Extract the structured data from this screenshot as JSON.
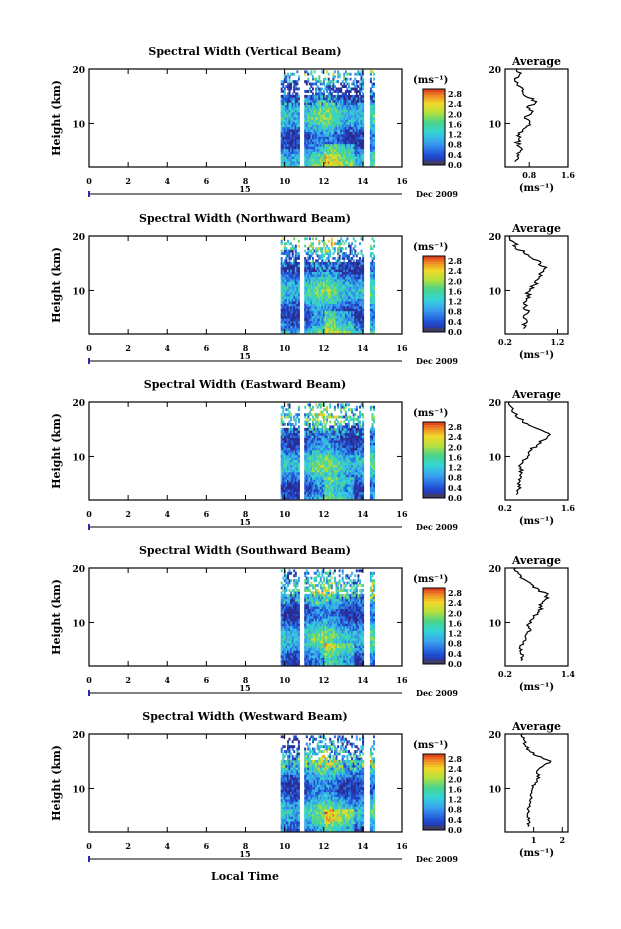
{
  "figure": {
    "date_label": "Dec 2009",
    "day_label": "15",
    "xlabel": "Local Time",
    "colorbar_unit": "(ms⁻¹)",
    "avg_unit": "(ms⁻¹)",
    "avg_title": "Average"
  },
  "chart_data": [
    {
      "type": "heatmap",
      "title": "Spectral Width (Vertical Beam)",
      "ylabel": "Height (km)",
      "xlim": [
        0,
        16
      ],
      "ylim": [
        2,
        20
      ],
      "xticks": [
        "0",
        "2",
        "4",
        "6",
        "8",
        "10",
        "12",
        "14",
        "16"
      ],
      "yticks": [
        "10",
        "20"
      ],
      "data_x_range": [
        9.8,
        14.6
      ],
      "data_gaps": [
        [
          10.7,
          11.0
        ],
        [
          14.0,
          14.3
        ]
      ],
      "colorbar": {
        "ticks": [
          "2.8",
          "2.4",
          "2.0",
          "1.6",
          "1.2",
          "0.8",
          "0.4",
          "0.0"
        ],
        "range": [
          0.0,
          3.0
        ]
      },
      "average_profile": {
        "xlim": [
          0.3,
          1.6
        ],
        "xticks": [
          "0.8",
          "1.6"
        ],
        "points": [
          [
            0.5,
            3
          ],
          [
            0.55,
            4
          ],
          [
            0.62,
            5
          ],
          [
            0.55,
            6
          ],
          [
            0.58,
            7
          ],
          [
            0.6,
            8
          ],
          [
            0.68,
            9
          ],
          [
            0.8,
            10
          ],
          [
            0.7,
            11
          ],
          [
            0.85,
            12
          ],
          [
            0.75,
            13
          ],
          [
            0.95,
            14
          ],
          [
            0.72,
            15
          ],
          [
            0.65,
            16
          ],
          [
            0.55,
            17
          ],
          [
            0.5,
            18
          ],
          [
            0.6,
            19
          ],
          [
            0.55,
            20
          ]
        ]
      }
    },
    {
      "type": "heatmap",
      "title": "Spectral Width (Northward Beam)",
      "ylabel": "Height (km)",
      "xlim": [
        0,
        16
      ],
      "ylim": [
        2,
        20
      ],
      "xticks": [
        "0",
        "2",
        "4",
        "6",
        "8",
        "10",
        "12",
        "14",
        "16"
      ],
      "yticks": [
        "10",
        "20"
      ],
      "data_x_range": [
        9.8,
        14.6
      ],
      "data_gaps": [
        [
          10.7,
          11.0
        ],
        [
          14.0,
          14.3
        ]
      ],
      "colorbar": {
        "ticks": [
          "2.8",
          "2.4",
          "2.0",
          "1.6",
          "1.2",
          "0.8",
          "0.4",
          "0.0"
        ],
        "range": [
          0.0,
          3.0
        ]
      },
      "average_profile": {
        "xlim": [
          0.2,
          1.4
        ],
        "xticks": [
          "0.2",
          "1.2"
        ],
        "points": [
          [
            0.55,
            3
          ],
          [
            0.6,
            4
          ],
          [
            0.55,
            5
          ],
          [
            0.65,
            6
          ],
          [
            0.58,
            7
          ],
          [
            0.6,
            8
          ],
          [
            0.62,
            9
          ],
          [
            0.68,
            10
          ],
          [
            0.75,
            11
          ],
          [
            0.82,
            12
          ],
          [
            0.85,
            13
          ],
          [
            0.95,
            14
          ],
          [
            0.88,
            15
          ],
          [
            0.7,
            16
          ],
          [
            0.55,
            17
          ],
          [
            0.4,
            18
          ],
          [
            0.35,
            19
          ],
          [
            0.3,
            20
          ]
        ]
      }
    },
    {
      "type": "heatmap",
      "title": "Spectral Width (Eastward Beam)",
      "ylabel": "Height (km)",
      "xlim": [
        0,
        16
      ],
      "ylim": [
        2,
        20
      ],
      "xticks": [
        "0",
        "2",
        "4",
        "6",
        "8",
        "10",
        "12",
        "14",
        "16"
      ],
      "yticks": [
        "10",
        "20"
      ],
      "data_x_range": [
        9.8,
        14.6
      ],
      "data_gaps": [
        [
          10.7,
          11.0
        ],
        [
          14.0,
          14.3
        ]
      ],
      "colorbar": {
        "ticks": [
          "2.8",
          "2.4",
          "2.0",
          "1.6",
          "1.2",
          "0.8",
          "0.4",
          "0.0"
        ],
        "range": [
          0.0,
          3.0
        ]
      },
      "average_profile": {
        "xlim": [
          0.2,
          1.6
        ],
        "xticks": [
          "0.2",
          "1.6"
        ],
        "points": [
          [
            0.45,
            3
          ],
          [
            0.5,
            4
          ],
          [
            0.48,
            5
          ],
          [
            0.55,
            6
          ],
          [
            0.58,
            7
          ],
          [
            0.55,
            8
          ],
          [
            0.6,
            9
          ],
          [
            0.7,
            10
          ],
          [
            0.75,
            11
          ],
          [
            0.9,
            12
          ],
          [
            1.05,
            13
          ],
          [
            1.2,
            14
          ],
          [
            0.95,
            15
          ],
          [
            0.7,
            16
          ],
          [
            0.5,
            17
          ],
          [
            0.4,
            18
          ],
          [
            0.35,
            19
          ],
          [
            0.3,
            20
          ]
        ]
      }
    },
    {
      "type": "heatmap",
      "title": "Spectral Width (Southward Beam)",
      "ylabel": "Height (km)",
      "xlim": [
        0,
        16
      ],
      "ylim": [
        2,
        20
      ],
      "xticks": [
        "0",
        "2",
        "4",
        "6",
        "8",
        "10",
        "12",
        "14",
        "16"
      ],
      "yticks": [
        "10",
        "20"
      ],
      "data_x_range": [
        9.8,
        14.6
      ],
      "data_gaps": [
        [
          10.7,
          11.0
        ],
        [
          14.0,
          14.3
        ]
      ],
      "colorbar": {
        "ticks": [
          "2.8",
          "2.4",
          "2.0",
          "1.6",
          "1.2",
          "0.8",
          "0.4",
          "0.0"
        ],
        "range": [
          0.0,
          3.0
        ]
      },
      "average_profile": {
        "xlim": [
          0.2,
          1.4
        ],
        "xticks": [
          "0.2",
          "1.4"
        ],
        "points": [
          [
            0.5,
            3
          ],
          [
            0.55,
            4
          ],
          [
            0.52,
            5
          ],
          [
            0.55,
            6
          ],
          [
            0.6,
            7
          ],
          [
            0.62,
            8
          ],
          [
            0.65,
            9
          ],
          [
            0.7,
            10
          ],
          [
            0.75,
            11
          ],
          [
            0.85,
            12
          ],
          [
            0.9,
            13
          ],
          [
            0.95,
            14
          ],
          [
            1.0,
            15
          ],
          [
            0.85,
            16
          ],
          [
            0.7,
            17
          ],
          [
            0.55,
            18
          ],
          [
            0.45,
            19
          ],
          [
            0.4,
            20
          ]
        ]
      }
    },
    {
      "type": "heatmap",
      "title": "Spectral Width (Westward Beam)",
      "ylabel": "Height (km)",
      "xlim": [
        0,
        16
      ],
      "ylim": [
        2,
        20
      ],
      "xticks": [
        "0",
        "2",
        "4",
        "6",
        "8",
        "10",
        "12",
        "14",
        "16"
      ],
      "yticks": [
        "10",
        "20"
      ],
      "data_x_range": [
        9.8,
        14.6
      ],
      "data_gaps": [
        [
          10.7,
          11.0
        ],
        [
          14.0,
          14.3
        ]
      ],
      "colorbar": {
        "ticks": [
          "2.8",
          "2.4",
          "2.0",
          "1.6",
          "1.2",
          "0.8",
          "0.4",
          "0.0"
        ],
        "range": [
          0.0,
          3.0
        ]
      },
      "average_profile": {
        "xlim": [
          0.0,
          2.2
        ],
        "xticks": [
          "1",
          "2"
        ],
        "points": [
          [
            0.8,
            3
          ],
          [
            0.85,
            4
          ],
          [
            0.78,
            5
          ],
          [
            0.82,
            6
          ],
          [
            0.85,
            7
          ],
          [
            0.88,
            8
          ],
          [
            0.9,
            9
          ],
          [
            0.95,
            10
          ],
          [
            1.05,
            11
          ],
          [
            1.2,
            12
          ],
          [
            1.1,
            13
          ],
          [
            1.3,
            14
          ],
          [
            1.6,
            15
          ],
          [
            1.1,
            16
          ],
          [
            0.85,
            17
          ],
          [
            0.7,
            18
          ],
          [
            0.65,
            19
          ],
          [
            0.6,
            20
          ]
        ]
      }
    }
  ]
}
